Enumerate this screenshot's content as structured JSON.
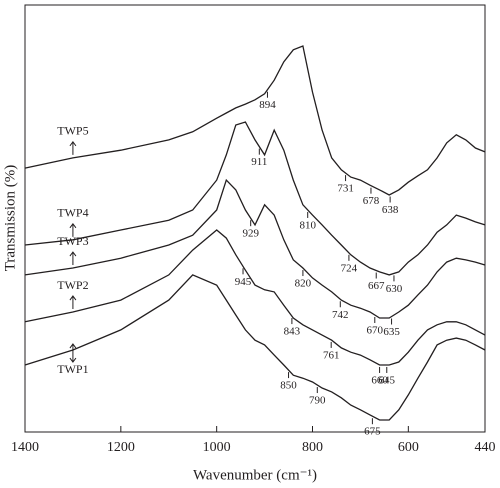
{
  "chart_data": {
    "type": "line",
    "xlabel": "Wavenumber (cm⁻¹)",
    "ylabel": "Transmission (%)",
    "x": [
      1400,
      1300,
      1200,
      1100,
      1050,
      1000,
      980,
      960,
      940,
      920,
      900,
      880,
      860,
      840,
      820,
      800,
      780,
      760,
      740,
      720,
      700,
      680,
      660,
      640,
      620,
      600,
      580,
      560,
      540,
      520,
      500,
      480,
      460,
      440
    ],
    "xlim": [
      1400,
      440
    ],
    "xticks": [
      1400,
      1200,
      1000,
      800,
      600,
      440
    ],
    "ylim": [
      0,
      100
    ],
    "series": [
      {
        "name": "TWP5",
        "color": "#231f20",
        "peaks": [
          894,
          731,
          678,
          638
        ],
        "values": [
          61.8,
          64.2,
          66.0,
          68.4,
          70.3,
          73.5,
          74.7,
          75.9,
          76.8,
          77.8,
          79.2,
          82.4,
          86.7,
          89.5,
          90.4,
          79.6,
          70.7,
          64.2,
          61.4,
          59.7,
          59.0,
          57.8,
          56.7,
          55.5,
          56.7,
          58.5,
          60.0,
          61.4,
          64.2,
          67.7,
          69.6,
          68.4,
          66.5,
          65.6
        ]
      },
      {
        "name": "TWP4",
        "color": "#231f20",
        "peaks": [
          911,
          810,
          724,
          667,
          630
        ],
        "values": [
          43.8,
          45.0,
          47.3,
          49.6,
          52.0,
          59.0,
          64.9,
          71.9,
          72.6,
          68.4,
          64.9,
          70.7,
          66.0,
          59.0,
          53.2,
          50.8,
          48.5,
          46.1,
          43.8,
          41.5,
          39.8,
          38.4,
          37.5,
          36.8,
          37.5,
          39.8,
          41.5,
          43.8,
          46.8,
          48.5,
          50.8,
          50.1,
          49.2,
          48.5
        ]
      },
      {
        "name": "TWP3",
        "color": "#231f20",
        "peaks": [
          929,
          820,
          742,
          670,
          635
        ],
        "values": [
          36.8,
          38.4,
          40.7,
          43.8,
          46.1,
          52.0,
          59.0,
          56.7,
          52.0,
          48.5,
          53.2,
          50.8,
          45.0,
          40.3,
          38.4,
          36.1,
          34.4,
          32.8,
          30.9,
          29.7,
          29.0,
          28.1,
          26.7,
          26.7,
          28.1,
          29.7,
          32.1,
          34.4,
          37.5,
          39.8,
          40.7,
          40.3,
          39.8,
          39.1
        ]
      },
      {
        "name": "TWP2",
        "color": "#231f20",
        "peaks": [
          945,
          843,
          761,
          660,
          645
        ],
        "values": [
          25.8,
          28.1,
          30.9,
          36.8,
          42.6,
          47.3,
          45.4,
          41.5,
          37.9,
          34.4,
          33.3,
          32.8,
          29.7,
          26.7,
          25.1,
          23.9,
          22.7,
          21.5,
          19.7,
          18.7,
          18.0,
          16.9,
          15.7,
          15.7,
          16.4,
          18.7,
          21.5,
          23.9,
          25.1,
          25.8,
          25.8,
          25.1,
          23.9,
          22.7
        ]
      },
      {
        "name": "TWP1",
        "color": "#231f20",
        "peaks": [
          850,
          790,
          675
        ],
        "values": [
          15.7,
          19.2,
          23.9,
          30.9,
          36.8,
          34.4,
          30.9,
          27.4,
          23.9,
          21.5,
          20.4,
          18.0,
          15.7,
          13.3,
          12.6,
          11.7,
          10.3,
          9.4,
          8.0,
          6.3,
          5.2,
          4.0,
          2.8,
          2.8,
          5.2,
          8.7,
          12.6,
          16.4,
          20.4,
          21.5,
          22.0,
          21.5,
          20.4,
          19.2
        ]
      }
    ]
  }
}
